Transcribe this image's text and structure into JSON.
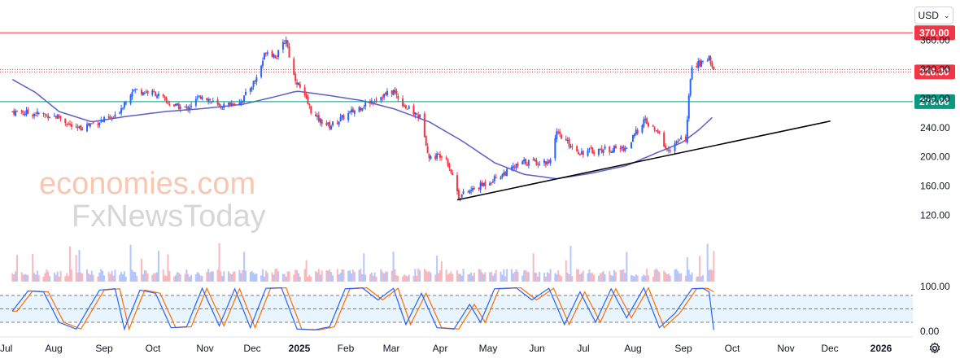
{
  "currency_selector": {
    "label": "USD"
  },
  "watermark": {
    "line1": "economies.com",
    "line2": "FxNewsToday"
  },
  "chart_data": {
    "type": "candlestick",
    "price_axis": {
      "ticks": [
        120,
        160,
        200,
        240,
        280,
        320,
        360
      ]
    },
    "price_ticks_text": [
      "120.00",
      "160.00",
      "200.00",
      "240.00",
      "280.00",
      "320.00",
      "360.00"
    ],
    "time_axis": {
      "labels": [
        "Jul",
        "Aug",
        "Sep",
        "Oct",
        "Nov",
        "Dec",
        "2025",
        "Feb",
        "Mar",
        "Apr",
        "May",
        "Jun",
        "Jul",
        "Aug",
        "Sep",
        "Oct",
        "Nov",
        "Dec",
        "2026"
      ],
      "bold_labels": [
        "2025",
        "2026"
      ]
    },
    "levels": [
      {
        "label": "370.00",
        "value": 370.0,
        "color": "#f23645",
        "style": "solid"
      },
      {
        "label": "316.30",
        "value": 316.3,
        "color": "#f23645",
        "style": "dotted"
      },
      {
        "label": "275.66",
        "value": 275.66,
        "color": "#089981",
        "style": "solid"
      }
    ],
    "trendline": {
      "from": {
        "date": "2025-04-07",
        "price": 141
      },
      "to": {
        "date": "2025-12-03",
        "price": 249
      },
      "color": "#000000"
    },
    "moving_average": {
      "color": "#5b5fc7",
      "points": [
        [
          "2024-06-25",
          306
        ],
        [
          "2024-07-10",
          288
        ],
        [
          "2024-07-25",
          262
        ],
        [
          "2024-08-15",
          248
        ],
        [
          "2024-09-05",
          255
        ],
        [
          "2024-10-01",
          262
        ],
        [
          "2024-10-25",
          266
        ],
        [
          "2024-11-20",
          272
        ],
        [
          "2024-12-10",
          282
        ],
        [
          "2024-12-25",
          290
        ],
        [
          "2025-01-15",
          284
        ],
        [
          "2025-02-05",
          277
        ],
        [
          "2025-02-25",
          266
        ],
        [
          "2025-03-20",
          248
        ],
        [
          "2025-04-10",
          222
        ],
        [
          "2025-05-01",
          192
        ],
        [
          "2025-05-20",
          176
        ],
        [
          "2025-06-10",
          170
        ],
        [
          "2025-07-01",
          177
        ],
        [
          "2025-07-25",
          188
        ],
        [
          "2025-08-15",
          207
        ],
        [
          "2025-08-30",
          220
        ],
        [
          "2025-09-10",
          238
        ],
        [
          "2025-09-19",
          256
        ]
      ]
    },
    "price_path": [
      [
        "2024-06-25",
        262
      ],
      [
        "2024-07-10",
        259
      ],
      [
        "2024-07-25",
        255
      ],
      [
        "2024-08-05",
        237
      ],
      [
        "2024-08-15",
        246
      ],
      [
        "2024-08-30",
        254
      ],
      [
        "2024-09-10",
        292
      ],
      [
        "2024-09-25",
        287
      ],
      [
        "2024-10-05",
        271
      ],
      [
        "2024-10-15",
        266
      ],
      [
        "2024-10-25",
        285
      ],
      [
        "2024-11-05",
        268
      ],
      [
        "2024-11-20",
        278
      ],
      [
        "2024-11-30",
        312
      ],
      [
        "2024-12-05",
        346
      ],
      [
        "2024-12-12",
        338
      ],
      [
        "2024-12-18",
        362
      ],
      [
        "2024-12-22",
        316
      ],
      [
        "2025-01-05",
        255
      ],
      [
        "2025-01-15",
        242
      ],
      [
        "2025-01-25",
        256
      ],
      [
        "2025-02-05",
        270
      ],
      [
        "2025-02-15",
        281
      ],
      [
        "2025-02-25",
        290
      ],
      [
        "2025-03-05",
        268
      ],
      [
        "2025-03-15",
        253
      ],
      [
        "2025-03-20",
        198
      ],
      [
        "2025-03-30",
        205
      ],
      [
        "2025-04-05",
        168
      ],
      [
        "2025-04-08",
        146
      ],
      [
        "2025-04-20",
        158
      ],
      [
        "2025-05-05",
        175
      ],
      [
        "2025-05-20",
        193
      ],
      [
        "2025-06-05",
        193
      ],
      [
        "2025-06-10",
        231
      ],
      [
        "2025-06-25",
        206
      ],
      [
        "2025-07-10",
        210
      ],
      [
        "2025-07-25",
        212
      ],
      [
        "2025-08-05",
        250
      ],
      [
        "2025-08-15",
        230
      ],
      [
        "2025-08-20",
        208
      ],
      [
        "2025-08-28",
        222
      ],
      [
        "2025-09-01",
        225
      ],
      [
        "2025-09-03",
        280
      ],
      [
        "2025-09-05",
        326
      ],
      [
        "2025-09-12",
        328
      ],
      [
        "2025-09-16",
        338
      ],
      [
        "2025-09-19",
        318
      ]
    ],
    "stochastic": {
      "ticks": [
        0,
        100
      ],
      "ticks_text": [
        "0.00",
        "100.00"
      ],
      "band": [
        20,
        80
      ],
      "mid": 50,
      "k_color": "#2962ff",
      "d_color": "#ff6d00",
      "k_points": [
        [
          "2024-06-25",
          45
        ],
        [
          "2024-07-05",
          90
        ],
        [
          "2024-07-15",
          88
        ],
        [
          "2024-07-25",
          20
        ],
        [
          "2024-08-05",
          5
        ],
        [
          "2024-08-20",
          92
        ],
        [
          "2024-08-30",
          95
        ],
        [
          "2024-09-05",
          5
        ],
        [
          "2024-09-15",
          92
        ],
        [
          "2024-09-25",
          85
        ],
        [
          "2024-10-05",
          8
        ],
        [
          "2024-10-15",
          10
        ],
        [
          "2024-10-25",
          96
        ],
        [
          "2024-11-05",
          12
        ],
        [
          "2024-11-15",
          95
        ],
        [
          "2024-11-25",
          8
        ],
        [
          "2024-12-05",
          96
        ],
        [
          "2024-12-15",
          97
        ],
        [
          "2024-12-25",
          5
        ],
        [
          "2025-01-05",
          3
        ],
        [
          "2025-01-15",
          10
        ],
        [
          "2025-01-25",
          95
        ],
        [
          "2025-02-05",
          97
        ],
        [
          "2025-02-15",
          70
        ],
        [
          "2025-02-25",
          96
        ],
        [
          "2025-03-05",
          15
        ],
        [
          "2025-03-15",
          85
        ],
        [
          "2025-03-25",
          8
        ],
        [
          "2025-04-05",
          5
        ],
        [
          "2025-04-15",
          60
        ],
        [
          "2025-04-22",
          20
        ],
        [
          "2025-05-01",
          95
        ],
        [
          "2025-05-15",
          97
        ],
        [
          "2025-05-25",
          70
        ],
        [
          "2025-06-05",
          96
        ],
        [
          "2025-06-15",
          15
        ],
        [
          "2025-06-25",
          88
        ],
        [
          "2025-07-05",
          20
        ],
        [
          "2025-07-15",
          95
        ],
        [
          "2025-07-25",
          30
        ],
        [
          "2025-08-05",
          97
        ],
        [
          "2025-08-15",
          8
        ],
        [
          "2025-08-25",
          40
        ],
        [
          "2025-09-05",
          95
        ],
        [
          "2025-09-12",
          96
        ],
        [
          "2025-09-16",
          88
        ],
        [
          "2025-09-19",
          3
        ]
      ]
    }
  }
}
